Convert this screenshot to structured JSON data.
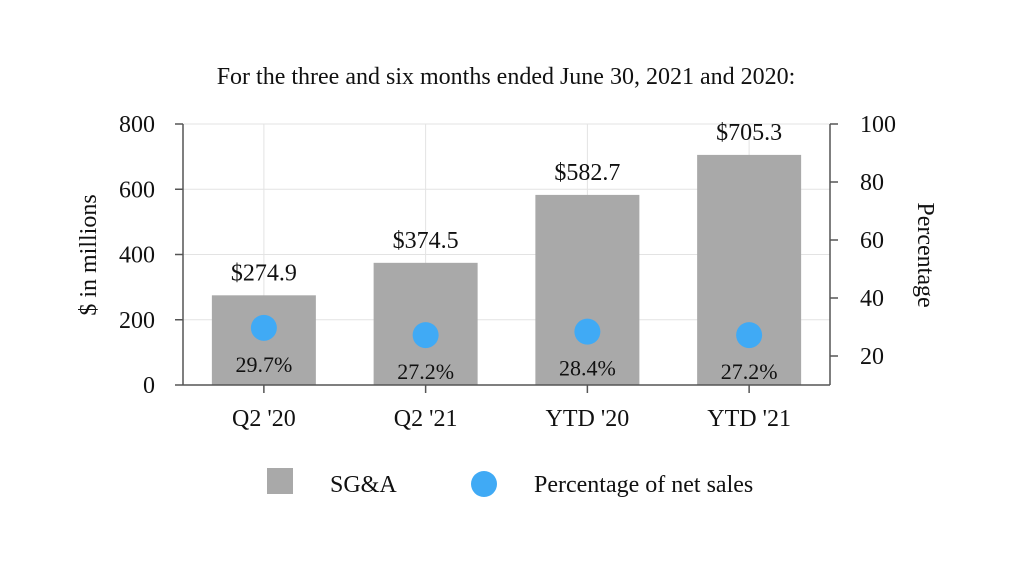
{
  "chart_data": {
    "type": "bar",
    "title": "For the three and six months ended June 30, 2021 and 2020:",
    "categories": [
      "Q2 '20",
      "Q2 '21",
      "YTD '20",
      "YTD '21"
    ],
    "series": [
      {
        "name": "SG&A",
        "kind": "bar",
        "axis": "left",
        "values": [
          274.9,
          374.5,
          582.7,
          705.3
        ],
        "labels": [
          "$274.9",
          "$374.5",
          "$582.7",
          "$705.3"
        ],
        "color": "#a9a9a9"
      },
      {
        "name": "Percentage of net sales",
        "kind": "scatter",
        "axis": "right",
        "values": [
          29.7,
          27.2,
          28.4,
          27.2
        ],
        "labels": [
          "29.7%",
          "27.2%",
          "28.4%",
          "27.2%"
        ],
        "color": "#40aaf5"
      }
    ],
    "ylabel": "$ in millions",
    "ylim": [
      0,
      800
    ],
    "yticks": [
      0,
      200,
      400,
      600,
      800
    ],
    "y2label": "Percentage",
    "y2lim": [
      10,
      100
    ],
    "y2ticks": [
      20,
      40,
      60,
      80,
      100
    ],
    "grid": true,
    "legend_position": "bottom-center"
  }
}
